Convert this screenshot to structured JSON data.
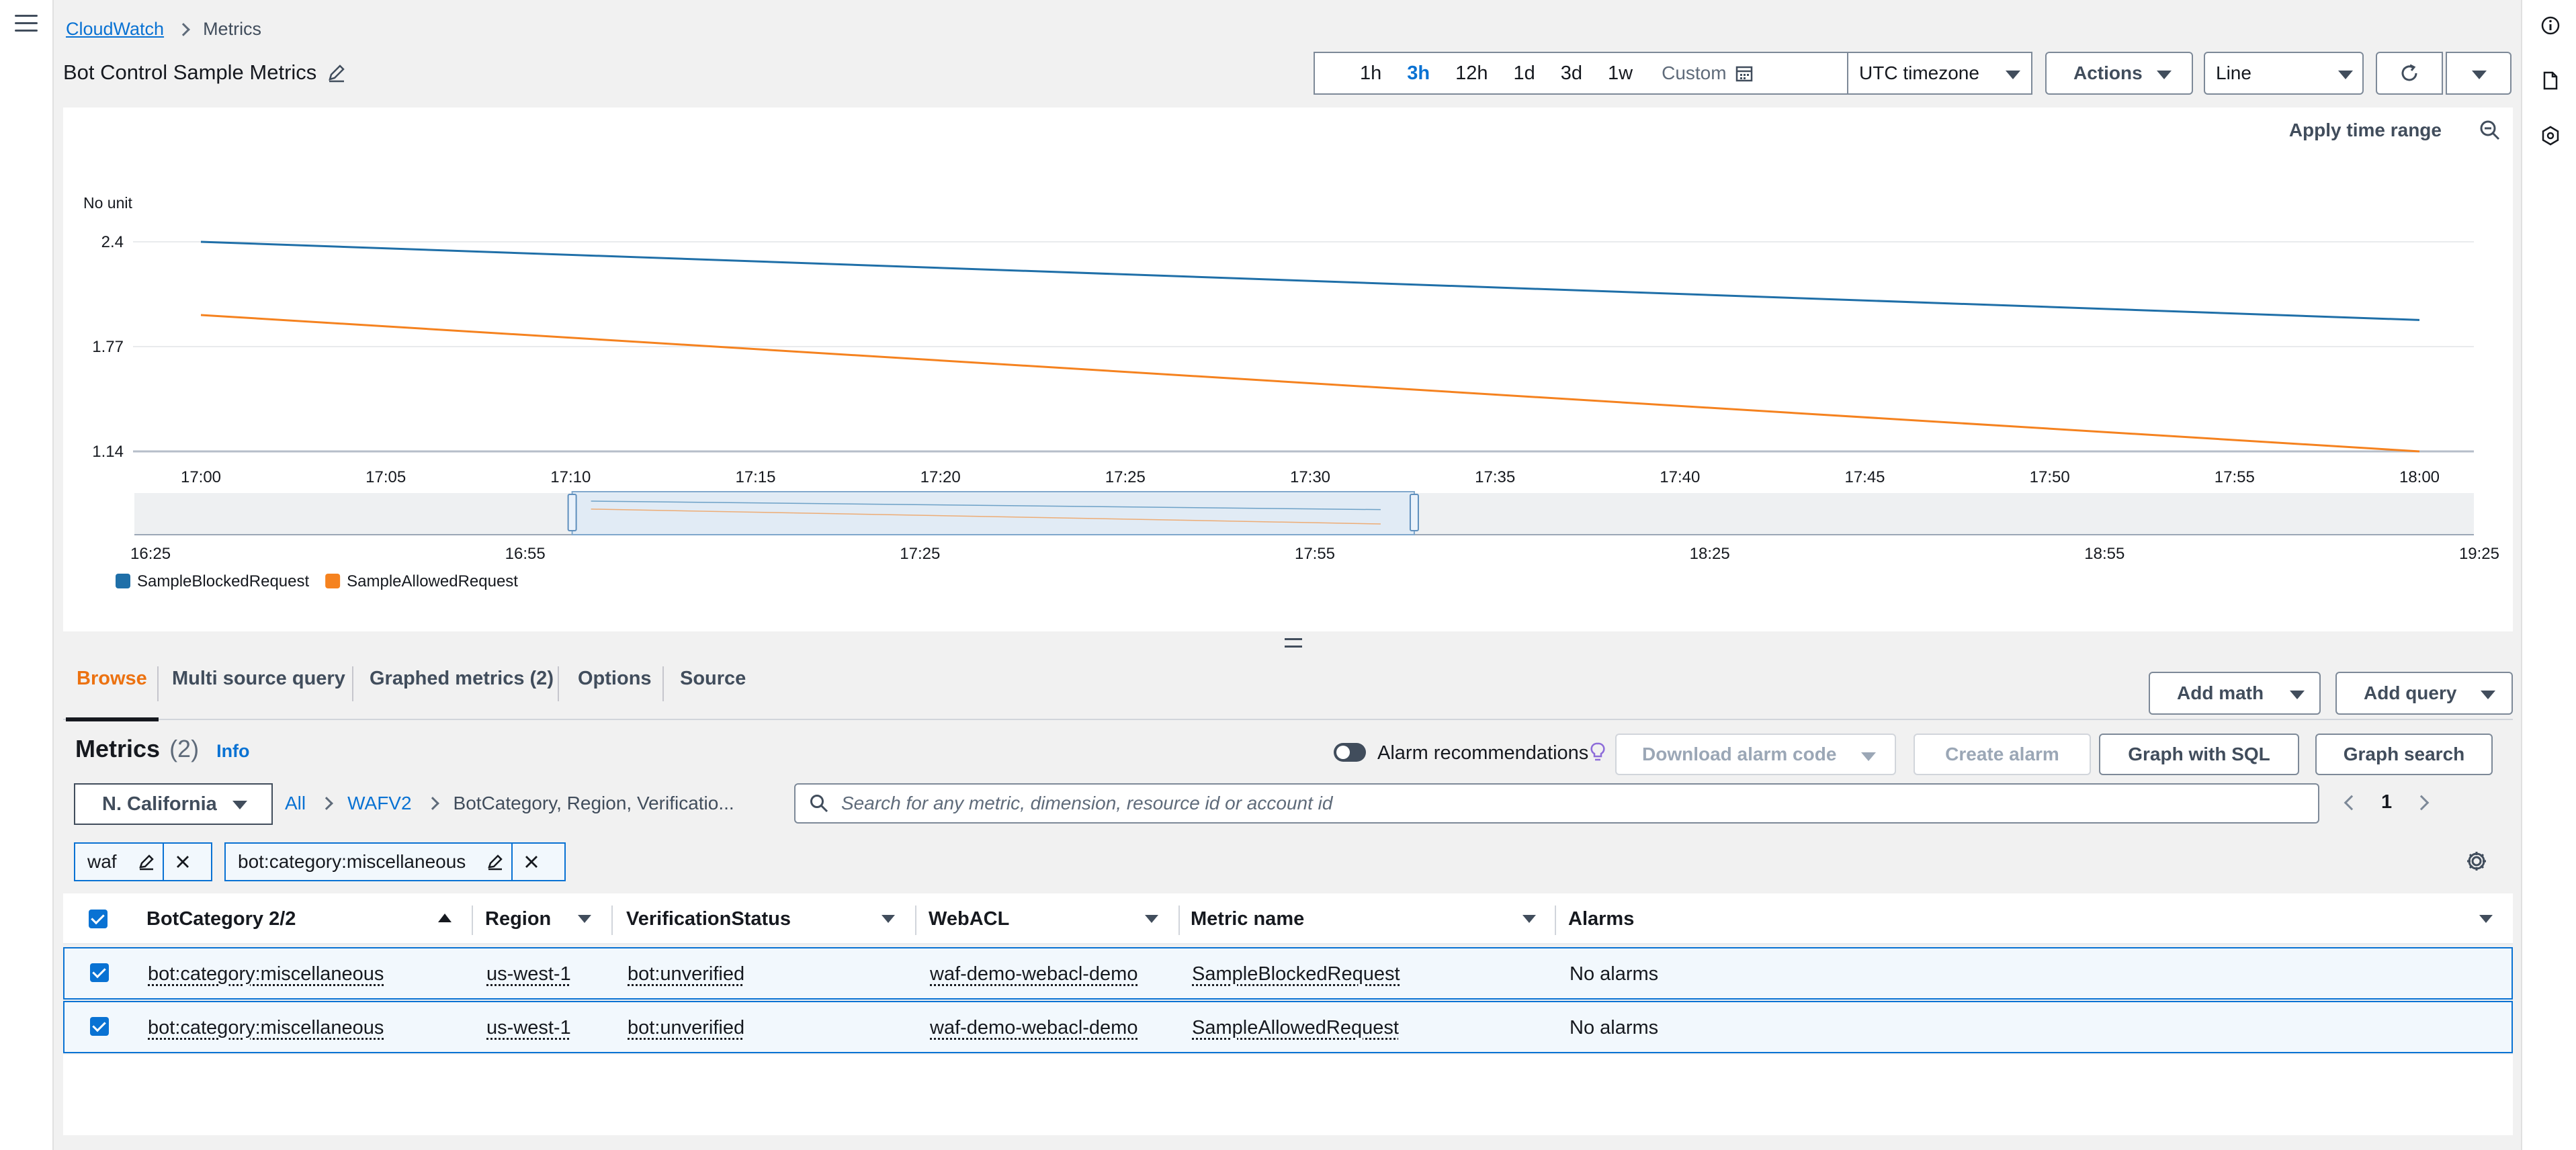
{
  "breadcrumb": {
    "root": "CloudWatch",
    "current": "Metrics"
  },
  "page_title": "Bot Control Sample Metrics",
  "time_range": {
    "options": [
      "1h",
      "3h",
      "12h",
      "1d",
      "3d",
      "1w"
    ],
    "selected": "3h",
    "custom_label": "Custom"
  },
  "timezone": "UTC timezone",
  "actions_label": "Actions",
  "graph_type": "Line",
  "apply_time_range": "Apply time range",
  "chart_data": {
    "type": "line",
    "ylabel": "No unit",
    "y_ticks": [
      "2.4",
      "1.77",
      "1.14"
    ],
    "ylim": [
      1.14,
      2.4
    ],
    "x_ticks": [
      "17:00",
      "17:05",
      "17:10",
      "17:15",
      "17:20",
      "17:25",
      "17:30",
      "17:35",
      "17:40",
      "17:45",
      "17:50",
      "17:55",
      "18:00"
    ],
    "series": [
      {
        "name": "SampleBlockedRequest",
        "color": "#1f6fa8",
        "x": [
          "17:00",
          "18:00"
        ],
        "values": [
          2.4,
          1.93
        ]
      },
      {
        "name": "SampleAllowedRequest",
        "color": "#f5821f",
        "x": [
          "17:00",
          "18:00"
        ],
        "values": [
          1.96,
          1.14
        ]
      }
    ],
    "navigator_ticks": [
      "16:25",
      "16:55",
      "17:25",
      "17:55",
      "18:25",
      "18:55",
      "19:25"
    ]
  },
  "tabs": [
    "Browse",
    "Multi source query",
    "Graphed metrics (2)",
    "Options",
    "Source"
  ],
  "add_math_label": "Add math",
  "add_query_label": "Add query",
  "metrics": {
    "title": "Metrics",
    "count": "(2)",
    "info": "Info"
  },
  "alarm_recommendations": "Alarm recommendations",
  "download_alarm_code": "Download alarm code",
  "create_alarm": "Create alarm",
  "graph_with_sql": "Graph with SQL",
  "graph_search": "Graph search",
  "region": "N. California",
  "browse_path": {
    "all": "All",
    "namespace": "WAFV2",
    "dimensions": "BotCategory, Region, Verificatio..."
  },
  "search_placeholder": "Search for any metric, dimension, resource id or account id",
  "page_number": "1",
  "filters": [
    "waf",
    "bot:category:miscellaneous"
  ],
  "table": {
    "columns": [
      "BotCategory 2/2",
      "Region",
      "VerificationStatus",
      "WebACL",
      "Metric name",
      "Alarms"
    ],
    "rows": [
      [
        "bot:category:miscellaneous",
        "us-west-1",
        "bot:unverified",
        "waf-demo-webacl-demo",
        "SampleBlockedRequest",
        "No alarms"
      ],
      [
        "bot:category:miscellaneous",
        "us-west-1",
        "bot:unverified",
        "waf-demo-webacl-demo",
        "SampleAllowedRequest",
        "No alarms"
      ]
    ]
  }
}
